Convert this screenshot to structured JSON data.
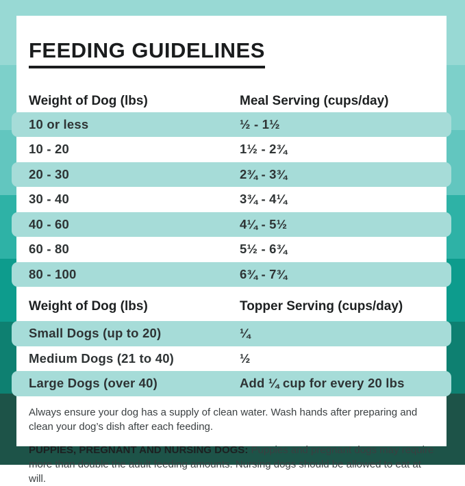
{
  "title": "FEEDING GUIDELINES",
  "meal_table": {
    "col1_header": "Weight of Dog (lbs)",
    "col2_header": "Meal Serving (cups/day)",
    "rows": [
      {
        "weight": "10 or less",
        "serving": "½ - 1½"
      },
      {
        "weight": "10 - 20",
        "serving": "1½ - 2¾"
      },
      {
        "weight": "20 - 30",
        "serving": "2¾ - 3¾"
      },
      {
        "weight": "30 - 40",
        "serving": "3¾ - 4¼"
      },
      {
        "weight": "40 - 60",
        "serving": "4¼ - 5½"
      },
      {
        "weight": "60 - 80",
        "serving": "5½ - 6¾"
      },
      {
        "weight": "80 - 100",
        "serving": "6¾ - 7¾"
      }
    ]
  },
  "topper_table": {
    "col1_header": "Weight of Dog (lbs)",
    "col2_header": "Topper Serving (cups/day)",
    "rows": [
      {
        "weight": "Small Dogs (up to 20)",
        "serving": "¼"
      },
      {
        "weight": "Medium Dogs (21 to 40)",
        "serving": "½"
      },
      {
        "weight": "Large Dogs (over 40)",
        "serving": "Add ¼ cup for every 20 lbs"
      }
    ]
  },
  "notes": {
    "water_note": "Always ensure your dog has a supply of clean water. Wash hands after preparing and clean your dog’s dish after each feeding.",
    "special_label": "PUPPIES, PREGNANT AND NURSING DOGS:",
    "special_text": " Puppies and pregnant dogs may require more than double the adult feeding amounts. Nursing dogs should be allowed to eat at will."
  },
  "colors": {
    "row_highlight": "#a6dcd8",
    "card_background": "#ffffff",
    "text_dark": "#1d2021",
    "background_bands": [
      "#98d9d4",
      "#7dd0ca",
      "#62c6bf",
      "#2eb2a6",
      "#0d9c8d",
      "#0e8071",
      "#1d5348"
    ]
  }
}
